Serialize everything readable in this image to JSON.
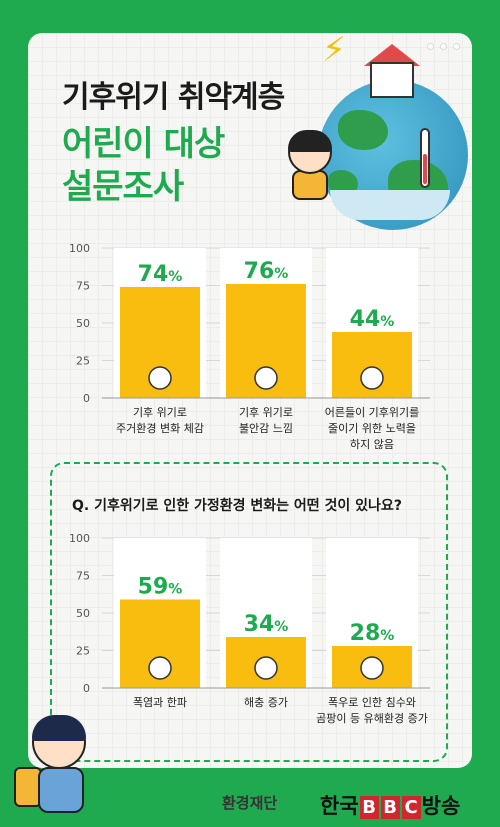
{
  "header": {
    "title_line1": "기후위기 취약계층",
    "title_line2": "어린이 대상",
    "title_line3": "설문조사"
  },
  "question": "Q. 기후위기로 인한 가정환경 변화는 어떤 것이 있나요?",
  "footer": {
    "org": "환경재단",
    "broadcaster_prefix": "한국",
    "broadcaster_bbc": [
      "B",
      "B",
      "C"
    ],
    "broadcaster_suffix": "방송"
  },
  "chart_data": [
    {
      "type": "bar",
      "categories": [
        [
          "기후 위기로",
          "주거환경 변화 체감"
        ],
        [
          "기후 위기로",
          "불안감 느낌"
        ],
        [
          "어른들이 기후위기를",
          "줄이기 위한 노력을",
          "하지 않음"
        ]
      ],
      "values": [
        74,
        76,
        44
      ],
      "value_labels": [
        "74",
        "76",
        "44"
      ],
      "unit": "%",
      "ylim": [
        0,
        100
      ],
      "yticks": [
        "0",
        "25",
        "50",
        "75",
        "100"
      ],
      "grid": true,
      "colors": {
        "bar": "#f9bd10",
        "value": "#1faa4f",
        "column_bg": "#ffffff"
      },
      "icons": [
        "house-icon",
        "worried-face-icon",
        "thumbs-down-icon"
      ]
    },
    {
      "type": "bar",
      "categories": [
        [
          "폭염과 한파"
        ],
        [
          "해충 증가"
        ],
        [
          "폭우로 인한 침수와",
          "곰팡이 등 유해환경 증가"
        ]
      ],
      "values": [
        59,
        34,
        28
      ],
      "value_labels": [
        "59",
        "34",
        "28"
      ],
      "unit": "%",
      "ylim": [
        0,
        100
      ],
      "yticks": [
        "0",
        "25",
        "50",
        "75",
        "100"
      ],
      "grid": true,
      "colors": {
        "bar": "#f9bd10",
        "value": "#1faa4f",
        "column_bg": "#ffffff"
      },
      "icons": [
        "thermometers-icon",
        "bug-icon",
        "mold-magnifier-icon"
      ]
    }
  ]
}
